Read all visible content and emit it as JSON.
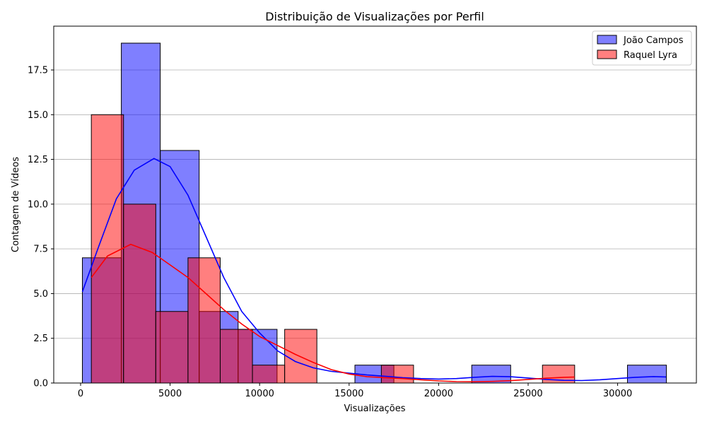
{
  "chart_data": {
    "type": "histogram",
    "title": "Distribuição de Visualizações por Perfil",
    "xlabel": "Visualizações",
    "ylabel": "Contagem de Vídeos",
    "xlim": [
      -1500,
      34400
    ],
    "ylim": [
      0,
      19.95
    ],
    "xticks": [
      0,
      5000,
      10000,
      15000,
      20000,
      25000,
      30000
    ],
    "xtick_labels": [
      "0",
      "5000",
      "10000",
      "15000",
      "20000",
      "25000",
      "30000"
    ],
    "yticks": [
      0,
      2.5,
      5.0,
      7.5,
      10.0,
      12.5,
      15.0,
      17.5
    ],
    "ytick_labels": [
      "0.0",
      "2.5",
      "5.0",
      "7.5",
      "10.0",
      "12.5",
      "15.0",
      "17.5"
    ],
    "grid": "y-axis",
    "legend_position": "top-right",
    "series": [
      {
        "name": "João Campos",
        "color": "#0000ff",
        "bins": [
          {
            "x0": 100,
            "x1": 2275,
            "count": 7
          },
          {
            "x0": 2275,
            "x1": 4450,
            "count": 19
          },
          {
            "x0": 4450,
            "x1": 6625,
            "count": 13
          },
          {
            "x0": 6625,
            "x1": 8800,
            "count": 4
          },
          {
            "x0": 8800,
            "x1": 10975,
            "count": 3
          },
          {
            "x0": 15325,
            "x1": 17500,
            "count": 1
          },
          {
            "x0": 21850,
            "x1": 24025,
            "count": 1
          },
          {
            "x0": 30550,
            "x1": 32725,
            "count": 1
          }
        ],
        "kde": [
          [
            100,
            5.1
          ],
          [
            1000,
            7.6
          ],
          [
            2000,
            10.3
          ],
          [
            3000,
            11.9
          ],
          [
            4100,
            12.55
          ],
          [
            5000,
            12.1
          ],
          [
            6000,
            10.5
          ],
          [
            7000,
            8.2
          ],
          [
            8000,
            5.9
          ],
          [
            9000,
            4.0
          ],
          [
            10000,
            2.8
          ],
          [
            11000,
            1.8
          ],
          [
            12000,
            1.2
          ],
          [
            13000,
            0.85
          ],
          [
            14000,
            0.65
          ],
          [
            15000,
            0.55
          ],
          [
            16000,
            0.45
          ],
          [
            17000,
            0.38
          ],
          [
            18000,
            0.3
          ],
          [
            19000,
            0.25
          ],
          [
            20000,
            0.22
          ],
          [
            21000,
            0.25
          ],
          [
            22000,
            0.32
          ],
          [
            23000,
            0.37
          ],
          [
            24000,
            0.35
          ],
          [
            25000,
            0.28
          ],
          [
            26000,
            0.2
          ],
          [
            27000,
            0.15
          ],
          [
            28000,
            0.14
          ],
          [
            29000,
            0.18
          ],
          [
            30000,
            0.25
          ],
          [
            31000,
            0.32
          ],
          [
            32000,
            0.36
          ],
          [
            32700,
            0.34
          ]
        ]
      },
      {
        "name": "Raquel Lyra",
        "color": "#ff0000",
        "bins": [
          {
            "x0": 600,
            "x1": 2400,
            "count": 15
          },
          {
            "x0": 2400,
            "x1": 4200,
            "count": 10
          },
          {
            "x0": 4200,
            "x1": 6000,
            "count": 4
          },
          {
            "x0": 6000,
            "x1": 7800,
            "count": 7
          },
          {
            "x0": 7800,
            "x1": 9600,
            "count": 3
          },
          {
            "x0": 9600,
            "x1": 11400,
            "count": 1
          },
          {
            "x0": 11400,
            "x1": 13200,
            "count": 3
          },
          {
            "x0": 16800,
            "x1": 18600,
            "count": 1
          },
          {
            "x0": 25800,
            "x1": 27600,
            "count": 1
          }
        ],
        "kde": [
          [
            600,
            5.9
          ],
          [
            1500,
            7.1
          ],
          [
            2800,
            7.75
          ],
          [
            4000,
            7.3
          ],
          [
            5000,
            6.6
          ],
          [
            6000,
            5.9
          ],
          [
            7000,
            5.0
          ],
          [
            8000,
            4.1
          ],
          [
            9000,
            3.3
          ],
          [
            10000,
            2.6
          ],
          [
            11000,
            2.1
          ],
          [
            12000,
            1.6
          ],
          [
            13000,
            1.15
          ],
          [
            14000,
            0.75
          ],
          [
            15000,
            0.5
          ],
          [
            16000,
            0.35
          ],
          [
            17000,
            0.3
          ],
          [
            18000,
            0.25
          ],
          [
            19000,
            0.18
          ],
          [
            20000,
            0.12
          ],
          [
            21000,
            0.08
          ],
          [
            22000,
            0.07
          ],
          [
            23000,
            0.09
          ],
          [
            24000,
            0.13
          ],
          [
            25000,
            0.2
          ],
          [
            26000,
            0.27
          ],
          [
            27000,
            0.32
          ],
          [
            27600,
            0.33
          ]
        ]
      }
    ]
  }
}
